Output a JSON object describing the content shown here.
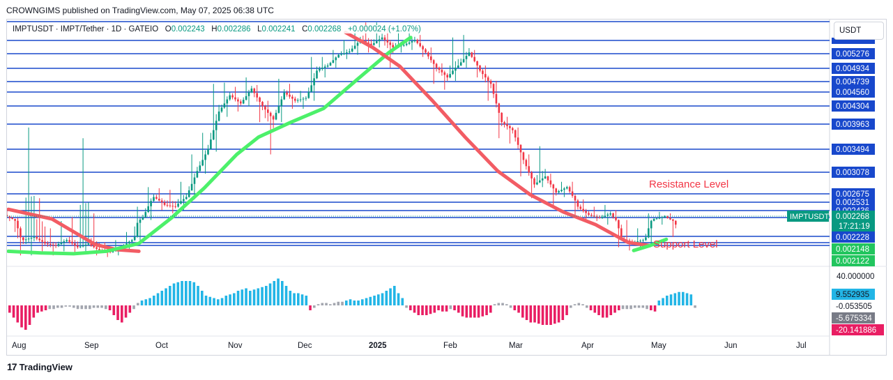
{
  "publisher": "CROWNGIMS published on TradingView.com, May 07, 2025 06:38 UTC",
  "header": {
    "symbol": "IMPTUSDT · IMPT/Tether · 1D · GATEIO",
    "open_label": "O",
    "open": "0.002243",
    "high_label": "H",
    "high": "0.002286",
    "low_label": "L",
    "low": "0.002241",
    "close_label": "C",
    "close": "0.002268",
    "change": "+0.000024 (+1.07%)"
  },
  "currency": "USDT",
  "logo_text": "TradingView",
  "colors": {
    "level_line": "#1848cc",
    "ma_fast": "#4cf06a",
    "ma_slow": "#f25c64",
    "candle_up": "#089981",
    "candle_down": "#f23645",
    "hist_cyan": "#22b5e6",
    "hist_gray": "#a3a6af",
    "hist_pink": "#e91e63",
    "label_up": "#22c55e",
    "annotation": "#f23645"
  },
  "chart_data": {
    "type": "candlestick",
    "price_axis_labels": [
      "0.005276",
      "0.004934",
      "0.004739",
      "0.004560",
      "0.004304",
      "0.003963",
      "0.003494",
      "0.003078",
      "0.002675",
      "0.002531",
      "0.002436",
      "0.002346",
      "0.002268",
      "0.002228",
      "0.002148",
      "0.002122"
    ],
    "horizontal_levels": [
      0.005276,
      0.004934,
      0.004739,
      0.00456,
      0.004304,
      0.003963,
      0.003494,
      0.003078,
      0.002675,
      0.002531,
      0.002436,
      0.002346,
      0.002268,
      0.002228,
      0.002148,
      0.002122
    ],
    "current_price": {
      "symbol": "IMPTUSDT",
      "value": "0.002268",
      "countdown": "17:21:19"
    },
    "annotations": [
      {
        "text": "Resistance Level",
        "price": 0.002346
      },
      {
        "text": "Support Level",
        "price": 0.002148
      }
    ],
    "x_tick_labels": [
      "Aug",
      "Sep",
      "Oct",
      "Nov",
      "Dec",
      "2025",
      "Feb",
      "Mar",
      "Apr",
      "May",
      "Jun",
      "Jul"
    ],
    "ma_fast": {
      "name": "",
      "points": [
        [
          0,
          0.00205
        ],
        [
          6,
          0.00203
        ],
        [
          12,
          0.00202
        ],
        [
          18,
          0.00205
        ],
        [
          24,
          0.00214
        ],
        [
          30,
          0.00234
        ],
        [
          36,
          0.00278
        ],
        [
          42,
          0.0034
        ],
        [
          46,
          0.00372
        ],
        [
          52,
          0.004
        ],
        [
          58,
          0.00426
        ],
        [
          64,
          0.00476
        ],
        [
          70,
          0.0053
        ],
        [
          74,
          0.0056
        ]
      ]
    },
    "ma_slow": {
      "name": "",
      "points": [
        [
          62,
          0.0057
        ],
        [
          67,
          0.0054
        ],
        [
          72,
          0.00498
        ],
        [
          78,
          0.0044
        ],
        [
          84,
          0.00372
        ],
        [
          90,
          0.0031
        ],
        [
          96,
          0.00266
        ],
        [
          102,
          0.00242
        ],
        [
          108,
          0.00226
        ],
        [
          114,
          0.00215
        ],
        [
          118,
          0.00212
        ]
      ]
    },
    "ma_fast_late": {
      "name": "",
      "points": [
        [
          115,
          0.00206
        ],
        [
          118,
          0.00212
        ],
        [
          121,
          0.00219
        ]
      ]
    },
    "ma_slow_early": {
      "name": "",
      "points": [
        [
          0,
          0.00245
        ],
        [
          8,
          0.00232
        ],
        [
          16,
          0.00213
        ],
        [
          20,
          0.00207
        ],
        [
          24,
          0.00205
        ]
      ]
    },
    "candles": [
      {
        "t": 0,
        "o": 0.0024,
        "c": 0.00232,
        "h": 0.00245,
        "l": 0.00228
      },
      {
        "t": 2,
        "o": 0.00232,
        "c": 0.00218,
        "h": 0.00234,
        "l": 0.002
      },
      {
        "t": 4,
        "o": 0.00218,
        "c": 0.00222,
        "h": 0.0039,
        "l": 0.002
      },
      {
        "t": 6,
        "o": 0.00222,
        "c": 0.00214,
        "h": 0.0026,
        "l": 0.00205
      },
      {
        "t": 8,
        "o": 0.00214,
        "c": 0.00212,
        "h": 0.00225,
        "l": 0.002
      },
      {
        "t": 10,
        "o": 0.00212,
        "c": 0.00218,
        "h": 0.00228,
        "l": 0.00205
      },
      {
        "t": 12,
        "o": 0.00218,
        "c": 0.0021,
        "h": 0.00235,
        "l": 0.00202
      },
      {
        "t": 14,
        "o": 0.0021,
        "c": 0.00214,
        "h": 0.0037,
        "l": 0.00205
      },
      {
        "t": 16,
        "o": 0.00214,
        "c": 0.00206,
        "h": 0.0024,
        "l": 0.002
      },
      {
        "t": 18,
        "o": 0.00206,
        "c": 0.00204,
        "h": 0.00215,
        "l": 0.00198
      },
      {
        "t": 20,
        "o": 0.00204,
        "c": 0.0021,
        "h": 0.00218,
        "l": 0.002
      },
      {
        "t": 22,
        "o": 0.0021,
        "c": 0.00218,
        "h": 0.00224,
        "l": 0.00206
      },
      {
        "t": 24,
        "o": 0.00218,
        "c": 0.00235,
        "h": 0.00248,
        "l": 0.00214
      },
      {
        "t": 26,
        "o": 0.00235,
        "c": 0.00262,
        "h": 0.0028,
        "l": 0.0023
      },
      {
        "t": 28,
        "o": 0.00262,
        "c": 0.0025,
        "h": 0.00278,
        "l": 0.00244
      },
      {
        "t": 30,
        "o": 0.0025,
        "c": 0.00248,
        "h": 0.00275,
        "l": 0.0024
      },
      {
        "t": 32,
        "o": 0.00248,
        "c": 0.00262,
        "h": 0.0029,
        "l": 0.00244
      },
      {
        "t": 34,
        "o": 0.00262,
        "c": 0.0031,
        "h": 0.0034,
        "l": 0.00258
      },
      {
        "t": 36,
        "o": 0.0031,
        "c": 0.0035,
        "h": 0.0038,
        "l": 0.00305
      },
      {
        "t": 38,
        "o": 0.0035,
        "c": 0.0042,
        "h": 0.0047,
        "l": 0.00345
      },
      {
        "t": 40,
        "o": 0.0042,
        "c": 0.0045,
        "h": 0.00472,
        "l": 0.0041
      },
      {
        "t": 42,
        "o": 0.0045,
        "c": 0.00435,
        "h": 0.00465,
        "l": 0.0042
      },
      {
        "t": 44,
        "o": 0.00435,
        "c": 0.00462,
        "h": 0.0048,
        "l": 0.0043
      },
      {
        "t": 46,
        "o": 0.00462,
        "c": 0.0043,
        "h": 0.00468,
        "l": 0.004
      },
      {
        "t": 48,
        "o": 0.0043,
        "c": 0.00405,
        "h": 0.0044,
        "l": 0.0034
      },
      {
        "t": 50,
        "o": 0.00405,
        "c": 0.00455,
        "h": 0.00478,
        "l": 0.004
      },
      {
        "t": 52,
        "o": 0.00455,
        "c": 0.0044,
        "h": 0.0047,
        "l": 0.00425
      },
      {
        "t": 54,
        "o": 0.0044,
        "c": 0.00445,
        "h": 0.00458,
        "l": 0.00425
      },
      {
        "t": 56,
        "o": 0.00445,
        "c": 0.0049,
        "h": 0.0052,
        "l": 0.0044
      },
      {
        "t": 58,
        "o": 0.0049,
        "c": 0.005,
        "h": 0.0052,
        "l": 0.0048
      },
      {
        "t": 60,
        "o": 0.005,
        "c": 0.00525,
        "h": 0.00535,
        "l": 0.00495
      },
      {
        "t": 62,
        "o": 0.00525,
        "c": 0.00532,
        "h": 0.00555,
        "l": 0.00515
      },
      {
        "t": 64,
        "o": 0.00532,
        "c": 0.00555,
        "h": 0.0058,
        "l": 0.00525
      },
      {
        "t": 66,
        "o": 0.00555,
        "c": 0.00545,
        "h": 0.0059,
        "l": 0.0053
      },
      {
        "t": 68,
        "o": 0.00545,
        "c": 0.0056,
        "h": 0.0059,
        "l": 0.0054
      },
      {
        "t": 70,
        "o": 0.0056,
        "c": 0.0054,
        "h": 0.0058,
        "l": 0.00495
      },
      {
        "t": 72,
        "o": 0.0054,
        "c": 0.00545,
        "h": 0.00575,
        "l": 0.0053
      },
      {
        "t": 74,
        "o": 0.00545,
        "c": 0.00555,
        "h": 0.0058,
        "l": 0.00535
      },
      {
        "t": 76,
        "o": 0.00555,
        "c": 0.0053,
        "h": 0.00565,
        "l": 0.0052
      },
      {
        "t": 78,
        "o": 0.0053,
        "c": 0.00495,
        "h": 0.0054,
        "l": 0.0047
      },
      {
        "t": 80,
        "o": 0.00495,
        "c": 0.0048,
        "h": 0.00505,
        "l": 0.0046
      },
      {
        "t": 82,
        "o": 0.0048,
        "c": 0.005,
        "h": 0.0056,
        "l": 0.00475
      },
      {
        "t": 84,
        "o": 0.005,
        "c": 0.0053,
        "h": 0.00565,
        "l": 0.00495
      },
      {
        "t": 86,
        "o": 0.0053,
        "c": 0.0049,
        "h": 0.00535,
        "l": 0.0048
      },
      {
        "t": 88,
        "o": 0.0049,
        "c": 0.0047,
        "h": 0.005,
        "l": 0.0044
      },
      {
        "t": 90,
        "o": 0.0047,
        "c": 0.004,
        "h": 0.00475,
        "l": 0.0037
      },
      {
        "t": 92,
        "o": 0.004,
        "c": 0.00385,
        "h": 0.0041,
        "l": 0.0036
      },
      {
        "t": 94,
        "o": 0.00385,
        "c": 0.0033,
        "h": 0.0039,
        "l": 0.003
      },
      {
        "t": 96,
        "o": 0.0033,
        "c": 0.00285,
        "h": 0.0034,
        "l": 0.0026
      },
      {
        "t": 98,
        "o": 0.00285,
        "c": 0.003,
        "h": 0.00355,
        "l": 0.0028
      },
      {
        "t": 100,
        "o": 0.003,
        "c": 0.0027,
        "h": 0.00305,
        "l": 0.00248
      },
      {
        "t": 102,
        "o": 0.0027,
        "c": 0.0028,
        "h": 0.0029,
        "l": 0.00262
      },
      {
        "t": 104,
        "o": 0.0028,
        "c": 0.00248,
        "h": 0.0029,
        "l": 0.00235
      },
      {
        "t": 106,
        "o": 0.00248,
        "c": 0.00238,
        "h": 0.00258,
        "l": 0.0023
      },
      {
        "t": 108,
        "o": 0.00238,
        "c": 0.00234,
        "h": 0.00248,
        "l": 0.00228
      },
      {
        "t": 110,
        "o": 0.00234,
        "c": 0.0024,
        "h": 0.0025,
        "l": 0.00226
      },
      {
        "t": 112,
        "o": 0.0024,
        "c": 0.0022,
        "h": 0.00244,
        "l": 0.0021
      },
      {
        "t": 114,
        "o": 0.0022,
        "c": 0.00215,
        "h": 0.0023,
        "l": 0.00206
      },
      {
        "t": 116,
        "o": 0.00215,
        "c": 0.00218,
        "h": 0.00225,
        "l": 0.00208
      },
      {
        "t": 118,
        "o": 0.00218,
        "c": 0.00232,
        "h": 0.0024,
        "l": 0.00214
      },
      {
        "t": 120,
        "o": 0.00232,
        "c": 0.00236,
        "h": 0.00242,
        "l": 0.00226
      },
      {
        "t": 122,
        "o": 0.00236,
        "c": 0.00226,
        "h": 0.0024,
        "l": 0.00222
      }
    ],
    "oscillator": {
      "axis_labels": [
        "40.000000",
        "9.552935",
        "-0.053505",
        "-5.675334",
        "-20.141886"
      ],
      "bars": [
        -6,
        -10,
        -14,
        -18,
        -20,
        -16,
        -10,
        -6,
        -5,
        -4,
        -3,
        -3,
        -2,
        -2,
        -1,
        -1,
        -2,
        -3,
        -3,
        -3,
        -3,
        -2,
        -2,
        -2,
        -3,
        -4,
        -8,
        -12,
        -14,
        -10,
        -6,
        -3,
        2,
        4,
        5,
        6,
        8,
        10,
        12,
        14,
        16,
        18,
        19,
        20,
        20,
        20,
        19,
        16,
        12,
        8,
        7,
        6,
        5,
        6,
        8,
        9,
        10,
        12,
        13,
        14,
        12,
        13,
        14,
        15,
        16,
        18,
        20,
        22,
        20,
        16,
        12,
        10,
        10,
        9,
        8,
        -4,
        -2,
        1,
        2,
        2,
        1,
        2,
        3,
        3,
        4,
        5,
        4,
        4,
        5,
        6,
        7,
        8,
        9,
        10,
        12,
        14,
        16,
        10,
        6,
        -2,
        -4,
        -6,
        -8,
        -8,
        -8,
        -7,
        -6,
        -4,
        -5,
        -5,
        -3,
        -4,
        -6,
        -9,
        -10,
        -10,
        -10,
        -10,
        -9,
        -8,
        -6,
        1,
        2,
        2,
        1,
        -2,
        -4,
        -6,
        -10,
        -12,
        -14,
        -14,
        -15,
        -16,
        -16,
        -16,
        -15,
        -14,
        -12,
        -8,
        -2,
        1,
        2,
        1,
        -2,
        -4,
        -6,
        -8,
        -10,
        -10,
        -8,
        -6,
        -4,
        -3,
        -3,
        -3,
        -2,
        -2,
        -2,
        -3,
        -4,
        -5,
        4,
        6,
        8,
        9,
        10,
        11,
        11,
        10,
        9,
        -2
      ],
      "bar_colors": "sign-based"
    }
  }
}
